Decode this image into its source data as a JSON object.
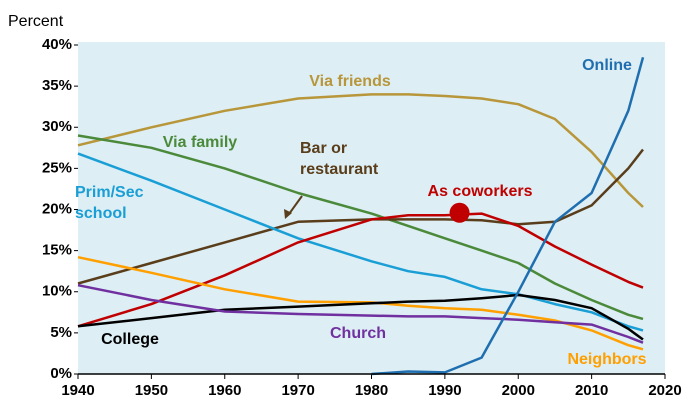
{
  "chart_data": {
    "type": "line",
    "ylabel": "Percent",
    "x": [
      1940,
      1950,
      1960,
      1970,
      1980,
      1985,
      1990,
      1995,
      2000,
      2005,
      2010,
      2015,
      2017
    ],
    "xlim": [
      1940,
      2020
    ],
    "xticks": [
      1940,
      1950,
      1960,
      1970,
      1980,
      1990,
      2000,
      2010,
      2020
    ],
    "ylim": [
      0,
      40
    ],
    "yticks": [
      {
        "value": 0,
        "label": "0%"
      },
      {
        "value": 5,
        "label": "5%"
      },
      {
        "value": 10,
        "label": "10%"
      },
      {
        "value": 15,
        "label": "15%"
      },
      {
        "value": 20,
        "label": "20%"
      },
      {
        "value": 25,
        "label": "25%"
      },
      {
        "value": 30,
        "label": "30%"
      },
      {
        "value": 35,
        "label": "35%"
      },
      {
        "value": 40,
        "label": "40%"
      }
    ],
    "series": [
      {
        "name": "Via friends",
        "color": "#b8963a",
        "values": [
          27.8,
          30,
          32,
          33.5,
          34,
          34,
          33.8,
          33.5,
          32.8,
          31,
          27,
          22,
          20.3
        ]
      },
      {
        "name": "Via family",
        "color": "#4a8a3a",
        "values": [
          29,
          27.5,
          25,
          22,
          19.5,
          18,
          16.5,
          15,
          13.5,
          11,
          9,
          7.2,
          6.7
        ]
      },
      {
        "name": "Bar or restaurant",
        "color": "#5a3e1b",
        "values": [
          11,
          13.5,
          16,
          18.5,
          18.8,
          18.8,
          18.8,
          18.7,
          18.2,
          18.5,
          20.5,
          25,
          27.3
        ]
      },
      {
        "name": "Prim/Sec school",
        "color": "#1a9ed6",
        "values": [
          26.8,
          23.5,
          20,
          16.5,
          13.7,
          12.5,
          11.8,
          10.3,
          9.7,
          8.5,
          7.5,
          5.8,
          5.3
        ]
      },
      {
        "name": "As coworkers",
        "color": "#c00000",
        "values": [
          5.8,
          8.5,
          12,
          16,
          18.8,
          19.3,
          19.3,
          19.5,
          18,
          15.5,
          13.3,
          11.2,
          10.5
        ]
      },
      {
        "name": "Neighbors",
        "color": "#ff9f00",
        "values": [
          14.2,
          12.3,
          10.3,
          8.8,
          8.7,
          8.3,
          8,
          7.8,
          7.2,
          6.5,
          5.3,
          3.5,
          3
        ]
      },
      {
        "name": "College",
        "color": "#000000",
        "values": [
          5.8,
          6.8,
          7.8,
          8.2,
          8.6,
          8.8,
          8.9,
          9.2,
          9.6,
          9,
          8,
          5.5,
          4.2
        ]
      },
      {
        "name": "Church",
        "color": "#7030a0",
        "values": [
          10.8,
          9,
          7.6,
          7.3,
          7.1,
          7,
          7,
          6.8,
          6.6,
          6.3,
          6,
          4.5,
          3.8
        ]
      },
      {
        "name": "Online",
        "color": "#1f6fb0",
        "values": [
          null,
          null,
          null,
          null,
          0,
          0.3,
          0.2,
          2,
          10,
          18.5,
          22,
          32,
          38.5
        ]
      }
    ],
    "marker": {
      "x": 1992,
      "y": 19.6,
      "color": "#c00000"
    }
  }
}
